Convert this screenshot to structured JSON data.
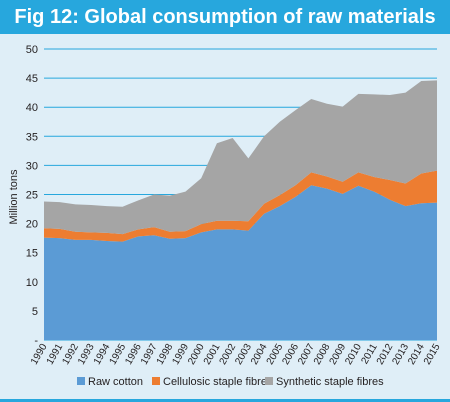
{
  "title": "Fig 12: Global consumption of raw materials",
  "colors": {
    "header": "#27a7dd",
    "background": "#dfeef7",
    "gridline": "#27a7dd",
    "raw_cotton": "#5b9bd5",
    "cellulosic": "#ed7d31",
    "synthetic": "#a5a5a5"
  },
  "chart_data": {
    "type": "area",
    "stacked": true,
    "title": "Fig 12: Global consumption of raw materials",
    "xlabel": "",
    "ylabel": "Million tons",
    "ylim": [
      0,
      50
    ],
    "yticks": [
      0,
      5,
      10,
      15,
      20,
      25,
      30,
      35,
      40,
      45,
      50
    ],
    "ytick_labels": [
      "-",
      "5",
      "10",
      "15",
      "20",
      "25",
      "30",
      "35",
      "40",
      "45",
      "50"
    ],
    "grid": true,
    "legend_position": "bottom",
    "x": [
      "1990",
      "1991",
      "1992",
      "1993",
      "1994",
      "1995",
      "1996",
      "1997",
      "1998",
      "1999",
      "2000",
      "2001",
      "2002",
      "2003",
      "2004",
      "2005",
      "2006",
      "2007",
      "2008",
      "2009",
      "2010",
      "2011",
      "2012",
      "2013",
      "2014",
      "2015"
    ],
    "series": [
      {
        "name": "Raw cotton",
        "color": "#5b9bd5",
        "values": [
          17.6,
          17.5,
          17.2,
          17.2,
          17.0,
          16.9,
          17.8,
          18.0,
          17.4,
          17.5,
          18.5,
          19.0,
          19.0,
          18.8,
          21.7,
          23.0,
          24.6,
          26.6,
          26.0,
          25.1,
          26.5,
          25.5,
          24.1,
          23.0,
          23.5,
          23.6
        ]
      },
      {
        "name": "Cellulosic staple fibres",
        "color": "#ed7d31",
        "values": [
          1.6,
          1.6,
          1.4,
          1.3,
          1.4,
          1.3,
          1.2,
          1.4,
          1.2,
          1.2,
          1.4,
          1.5,
          1.5,
          1.6,
          1.7,
          1.9,
          2.0,
          2.2,
          2.1,
          2.1,
          2.3,
          2.5,
          3.4,
          3.9,
          5.1,
          5.5
        ]
      },
      {
        "name": "Synthetic staple fibres",
        "color": "#a5a5a5",
        "values": [
          4.6,
          4.6,
          4.7,
          4.7,
          4.6,
          4.7,
          5.0,
          5.6,
          6.2,
          6.8,
          7.9,
          13.3,
          14.2,
          10.8,
          11.6,
          12.6,
          12.9,
          12.6,
          12.5,
          12.9,
          13.5,
          14.2,
          14.6,
          15.6,
          15.9,
          15.5
        ]
      }
    ]
  }
}
